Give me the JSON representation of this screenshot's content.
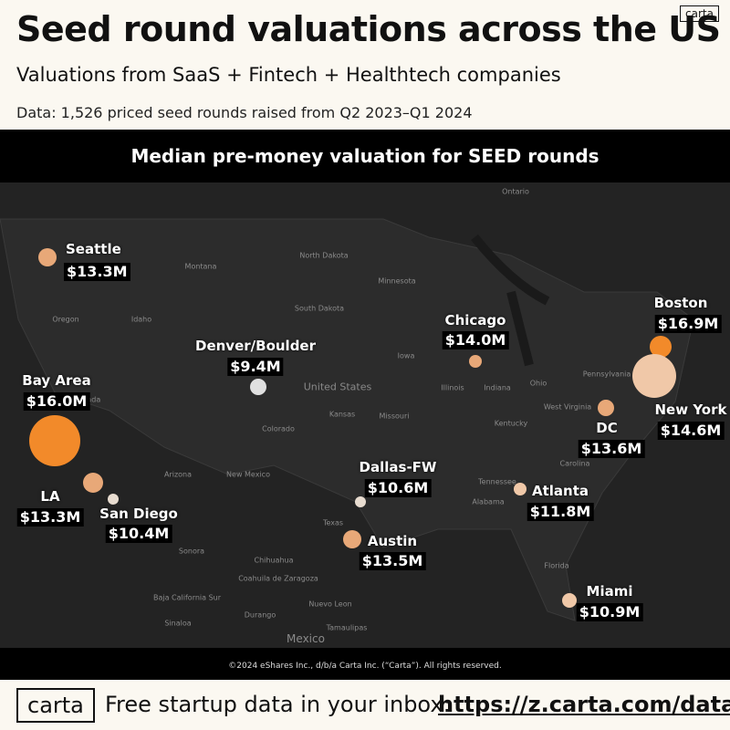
{
  "header": {
    "title": "Seed round valuations across the US",
    "subtitle": "Valuations from SaaS + Fintech + Healthtech companies",
    "note": "Data: 1,526 priced seed rounds raised from Q2 2023–Q1 2024",
    "badge": "carta"
  },
  "map": {
    "title": "Median pre-money valuation for SEED rounds",
    "labels": [
      "Ontario",
      "Montana",
      "North Dakota",
      "Minnesota",
      "South Dakota",
      "Oregon",
      "Idaho",
      "Iowa",
      "Nevada",
      "Colorado",
      "Kansas",
      "Missouri",
      "Illinois",
      "Indiana",
      "Ohio",
      "Pennsylvania",
      "Kentucky",
      "Tennessee",
      "Arizona",
      "New Mexico",
      "Texas",
      "Alabama",
      "Sonora",
      "Chihuahua",
      "Coahuila de Zaragoza",
      "Nuevo Leon",
      "Baja California Sur",
      "Sinaloa",
      "Durango",
      "Tamaulipas",
      "Mexico",
      "United States",
      "Florida",
      "Carolina",
      "West Virginia"
    ],
    "cities": [
      {
        "name": "Seattle",
        "value": "$13.3M"
      },
      {
        "name": "Bay Area",
        "value": "$16.0M"
      },
      {
        "name": "LA",
        "value": "$13.3M"
      },
      {
        "name": "San Diego",
        "value": "$10.4M"
      },
      {
        "name": "Denver/Boulder",
        "value": "$9.4M"
      },
      {
        "name": "Chicago",
        "value": "$14.0M"
      },
      {
        "name": "Boston",
        "value": "$16.9M"
      },
      {
        "name": "New York",
        "value": "$14.6M"
      },
      {
        "name": "DC",
        "value": "$13.6M"
      },
      {
        "name": "Dallas-FW",
        "value": "$10.6M"
      },
      {
        "name": "Atlanta",
        "value": "$11.8M"
      },
      {
        "name": "Austin",
        "value": "$13.5M"
      },
      {
        "name": "Miami",
        "value": "$10.9M"
      }
    ],
    "copyright": "©2024 eShares Inc., d/b/a Carta Inc. (“Carta”). All rights reserved."
  },
  "footer": {
    "logo": "carta",
    "cta": "Free startup data in your inbox:",
    "link": "https://z.carta.com/data"
  }
}
